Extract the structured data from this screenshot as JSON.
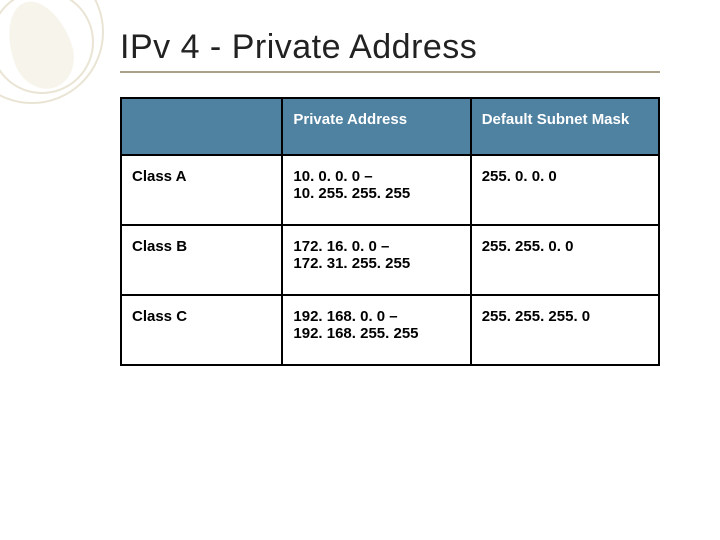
{
  "title": "IPv 4 - Private Address",
  "table": {
    "header_bg": "#4f81a0",
    "header_fg": "#ffffff",
    "border_color": "#000000",
    "cell_fg": "#000000",
    "columns": [
      "",
      "Private Address",
      "Default Subnet Mask"
    ],
    "rows": [
      {
        "label": "Class A",
        "range_line1": "10. 0. 0. 0 –",
        "range_line2": "10. 255. 255. 255",
        "mask": "255. 0. 0. 0"
      },
      {
        "label": "Class B",
        "range_line1": "172. 16. 0. 0 –",
        "range_line2": "172. 31. 255. 255",
        "mask": "255. 255. 0. 0"
      },
      {
        "label": "Class C",
        "range_line1": "192. 168. 0. 0 –",
        "range_line2": "192. 168. 255. 255",
        "mask": "255. 255. 255. 0"
      }
    ]
  },
  "style": {
    "title_fontsize": 34,
    "title_color": "#222222",
    "underline_color": "#a9a18a",
    "cell_fontsize": 15,
    "decor_ring_color": "#e9e4d4",
    "decor_leaf_color": "#f3efe2",
    "background_color": "#ffffff"
  }
}
